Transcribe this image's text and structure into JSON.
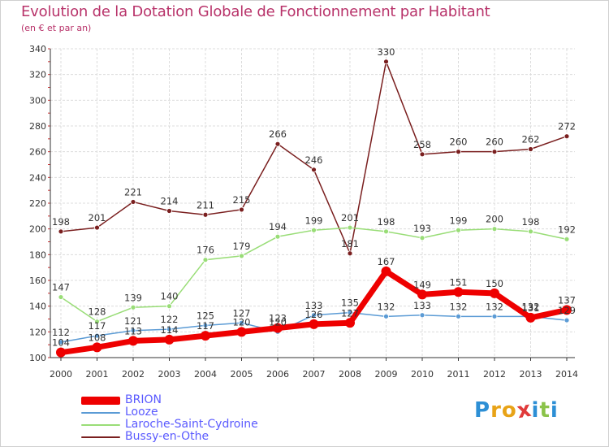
{
  "header": {
    "title": "Evolution de la Dotation Globale de Fonctionnement par Habitant",
    "subtitle": "(en € et par an)"
  },
  "logo": {
    "text": "Proxiti"
  },
  "chart_data": {
    "type": "line",
    "x": [
      "2000",
      "2001",
      "2002",
      "2003",
      "2004",
      "2005",
      "2006",
      "2007",
      "2008",
      "2009",
      "2010",
      "2011",
      "2012",
      "2013",
      "2014"
    ],
    "ylim": [
      100,
      340
    ],
    "yticks": [
      100,
      120,
      140,
      160,
      180,
      200,
      220,
      240,
      260,
      280,
      300,
      320,
      340
    ],
    "grid": true,
    "legend": "bottom-left",
    "series": [
      {
        "name": "Bussy-en-Othe",
        "color": "#7a1f1f",
        "width": 1.5,
        "values": [
          198,
          201,
          221,
          214,
          211,
          215,
          266,
          246,
          181,
          330,
          258,
          260,
          260,
          262,
          272
        ],
        "labels": [
          "198",
          "201",
          "221",
          "214",
          "211",
          "215",
          "266",
          "246",
          "181",
          "330",
          "258",
          "260",
          "260",
          "262",
          "272"
        ]
      },
      {
        "name": "Laroche-Saint-Cydroine",
        "color": "#99dd77",
        "width": 1.5,
        "values": [
          147,
          128,
          139,
          140,
          176,
          179,
          194,
          199,
          201,
          198,
          193,
          199,
          200,
          198,
          192
        ],
        "labels": [
          "147",
          "128",
          "139",
          "140",
          "176",
          "179",
          "194",
          "199",
          "201",
          "198",
          "193",
          "199",
          "200",
          "198",
          "192"
        ]
      },
      {
        "name": "Looze",
        "color": "#5b9bd5",
        "width": 1.5,
        "values": [
          112,
          117,
          121,
          122,
          125,
          127,
          120,
          133,
          135,
          132,
          133,
          132,
          132,
          132,
          129
        ],
        "labels": [
          "112",
          "117",
          "121",
          "122",
          "125",
          "127",
          "120",
          "133",
          "135",
          "132",
          "133",
          "132",
          "132",
          "132",
          "129"
        ]
      },
      {
        "name": "BRION",
        "color": "#ee0000",
        "width": 7,
        "values": [
          104,
          108,
          113,
          114,
          117,
          120,
          123,
          126,
          127,
          167,
          149,
          151,
          150,
          131,
          137
        ],
        "labels": [
          "104",
          "108",
          "113",
          "114",
          "117",
          "120",
          "123",
          "126",
          "127",
          "167",
          "149",
          "151",
          "150",
          "131",
          "137"
        ]
      }
    ],
    "legend_order": [
      "BRION",
      "Looze",
      "Laroche-Saint-Cydroine",
      "Bussy-en-Othe"
    ]
  }
}
